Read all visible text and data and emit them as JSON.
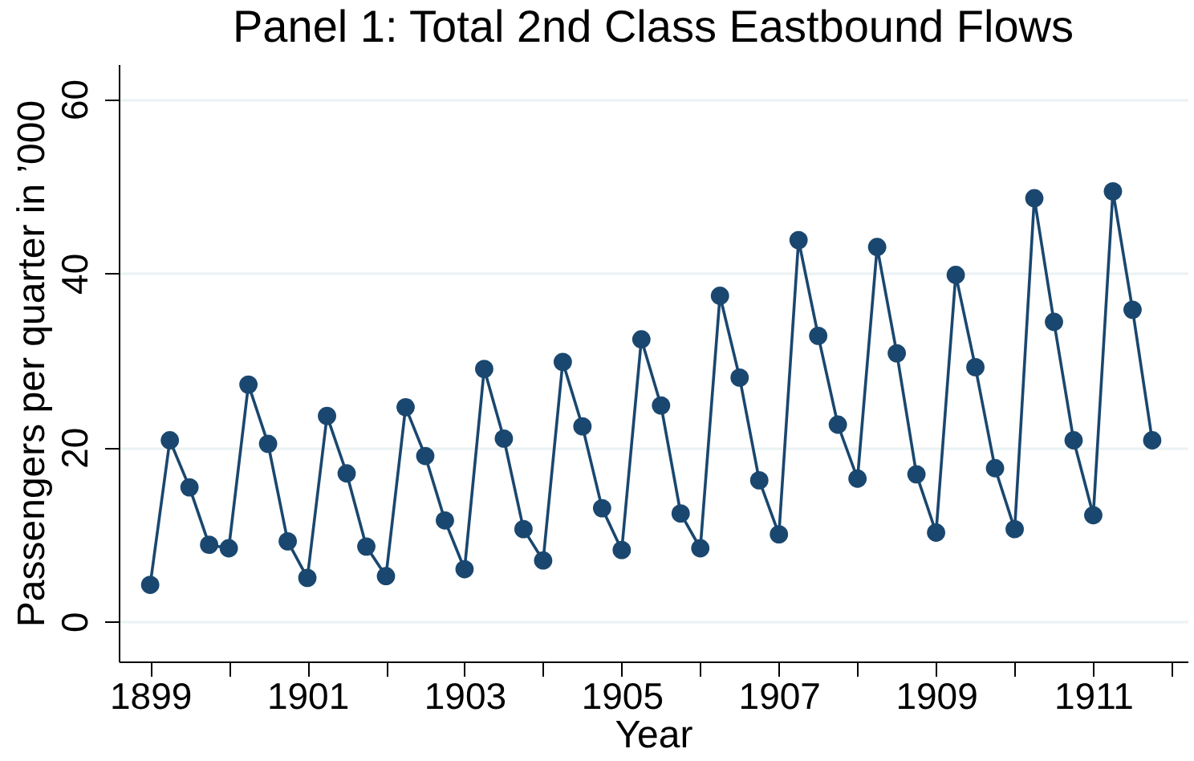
{
  "chart_data": {
    "type": "line",
    "title": "Panel 1: Total 2nd Class Eastbound Flows",
    "xlabel": "Year",
    "ylabel": "Passengers per quarter in ’000",
    "x": [
      1899,
      1899.25,
      1899.5,
      1899.75,
      1900,
      1900.25,
      1900.5,
      1900.75,
      1901,
      1901.25,
      1901.5,
      1901.75,
      1902,
      1902.25,
      1902.5,
      1902.75,
      1903,
      1903.25,
      1903.5,
      1903.75,
      1904,
      1904.25,
      1904.5,
      1904.75,
      1905,
      1905.25,
      1905.5,
      1905.75,
      1906,
      1906.25,
      1906.5,
      1906.75,
      1907,
      1907.25,
      1907.5,
      1907.75,
      1908,
      1908.25,
      1908.5,
      1908.75,
      1909,
      1909.25,
      1909.5,
      1909.75,
      1910,
      1910.25,
      1910.5,
      1910.75,
      1911,
      1911.25,
      1911.5,
      1911.75
    ],
    "series": [
      {
        "color": "#1a476f",
        "values": [
          4.2,
          20.8,
          15.4,
          8.8,
          8.4,
          27.2,
          20.4,
          9.2,
          5.0,
          23.6,
          17.0,
          8.6,
          5.2,
          24.6,
          19.0,
          11.6,
          6.0,
          29.0,
          21.0,
          10.6,
          7.0,
          29.8,
          22.4,
          13.0,
          8.2,
          32.4,
          24.8,
          12.4,
          8.4,
          37.4,
          28.0,
          16.2,
          10.0,
          43.8,
          32.8,
          22.6,
          16.4,
          43.0,
          30.8,
          16.9,
          10.2,
          39.8,
          29.2,
          17.6,
          10.6,
          48.6,
          34.4,
          20.8,
          12.2,
          49.4,
          35.8,
          20.8
        ]
      }
    ],
    "xlim": [
      1898.6,
      1912.2
    ],
    "xticks": [
      1899,
      {
        "value": 1900,
        "label": null
      },
      1901,
      {
        "value": 1902,
        "label": null
      },
      1903,
      {
        "value": 1904,
        "label": null
      },
      1905,
      {
        "value": 1906,
        "label": null
      },
      1907,
      {
        "value": 1908,
        "label": null
      },
      1909,
      {
        "value": 1910,
        "label": null
      },
      1911,
      {
        "value": 1912,
        "label": null
      }
    ],
    "ylim": [
      -4.6,
      64
    ],
    "yticks": [
      0,
      20,
      40,
      60
    ],
    "grid": "y",
    "marker": "circle",
    "line_style": "solid"
  }
}
